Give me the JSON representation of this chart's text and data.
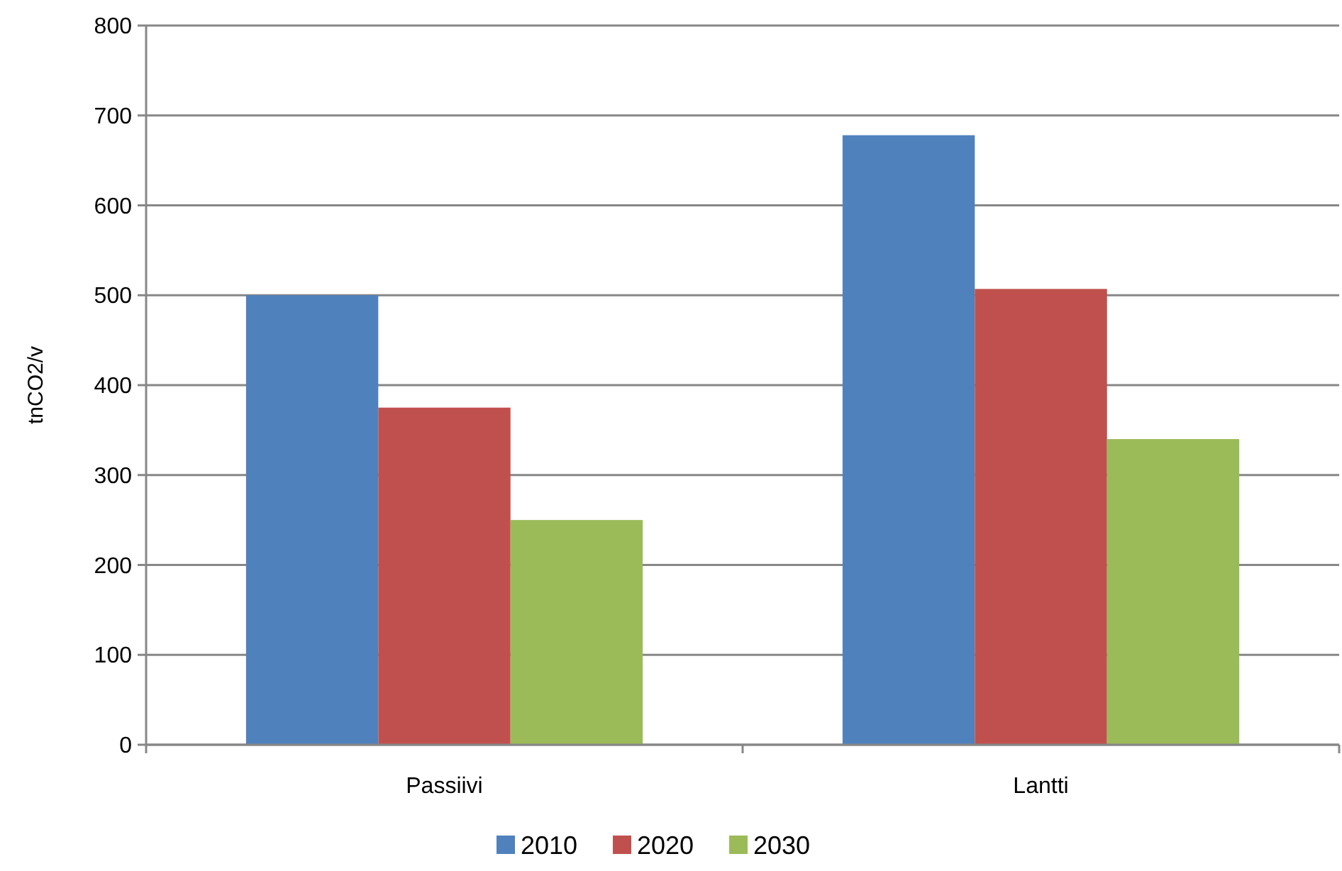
{
  "chart_data": {
    "type": "bar",
    "ylabel": "tnCO2/v",
    "categories": [
      "Passiivi",
      "Lantti"
    ],
    "series": [
      {
        "name": "2010",
        "color": "#4f81bd",
        "values": [
          500,
          678
        ]
      },
      {
        "name": "2020",
        "color": "#c0504d",
        "values": [
          375,
          507
        ]
      },
      {
        "name": "2030",
        "color": "#9bbb59",
        "values": [
          250,
          340
        ]
      }
    ],
    "ylim": [
      0,
      800
    ],
    "yticks": [
      0,
      100,
      200,
      300,
      400,
      500,
      600,
      700,
      800
    ],
    "grid": "y",
    "legend": "bottom"
  }
}
